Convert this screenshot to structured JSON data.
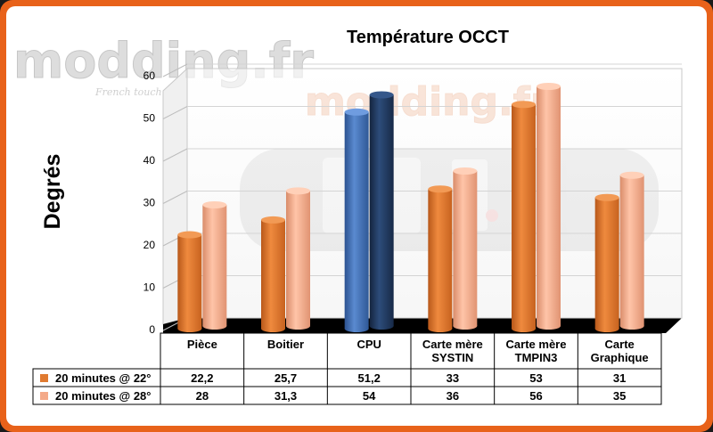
{
  "watermark": {
    "brand": "modding.fr",
    "tagline": "French touch"
  },
  "chart_data": {
    "type": "bar",
    "title": "Température OCCT",
    "ylabel": "Degrés",
    "xlabel": "",
    "ylim": [
      0,
      60
    ],
    "yticks": [
      0,
      10,
      20,
      30,
      40,
      50,
      60
    ],
    "grid": true,
    "legend": "table-below",
    "categories": [
      "Pièce",
      "Boitier",
      "CPU",
      "Carte mère SYSTIN",
      "Carte mère TMPIN3",
      "Carte Graphique"
    ],
    "series": [
      {
        "name": "20 minutes @ 22°",
        "values": [
          22.2,
          25.7,
          51.2,
          33,
          53,
          31
        ],
        "labels": [
          "22,2",
          "25,7",
          "51,2",
          "33",
          "53",
          "31"
        ]
      },
      {
        "name": "20 minutes @ 28°",
        "values": [
          28,
          31.3,
          54,
          36,
          56,
          35
        ],
        "labels": [
          "28",
          "31,3",
          "54",
          "36",
          "56",
          "35"
        ]
      }
    ]
  },
  "colors": {
    "series1": "#e07a30",
    "series2": "#f4a988",
    "cpu_series1": "#3f6fb5",
    "cpu_series2": "#1e3558",
    "floor": "#000000",
    "frame": "#e8621a"
  }
}
